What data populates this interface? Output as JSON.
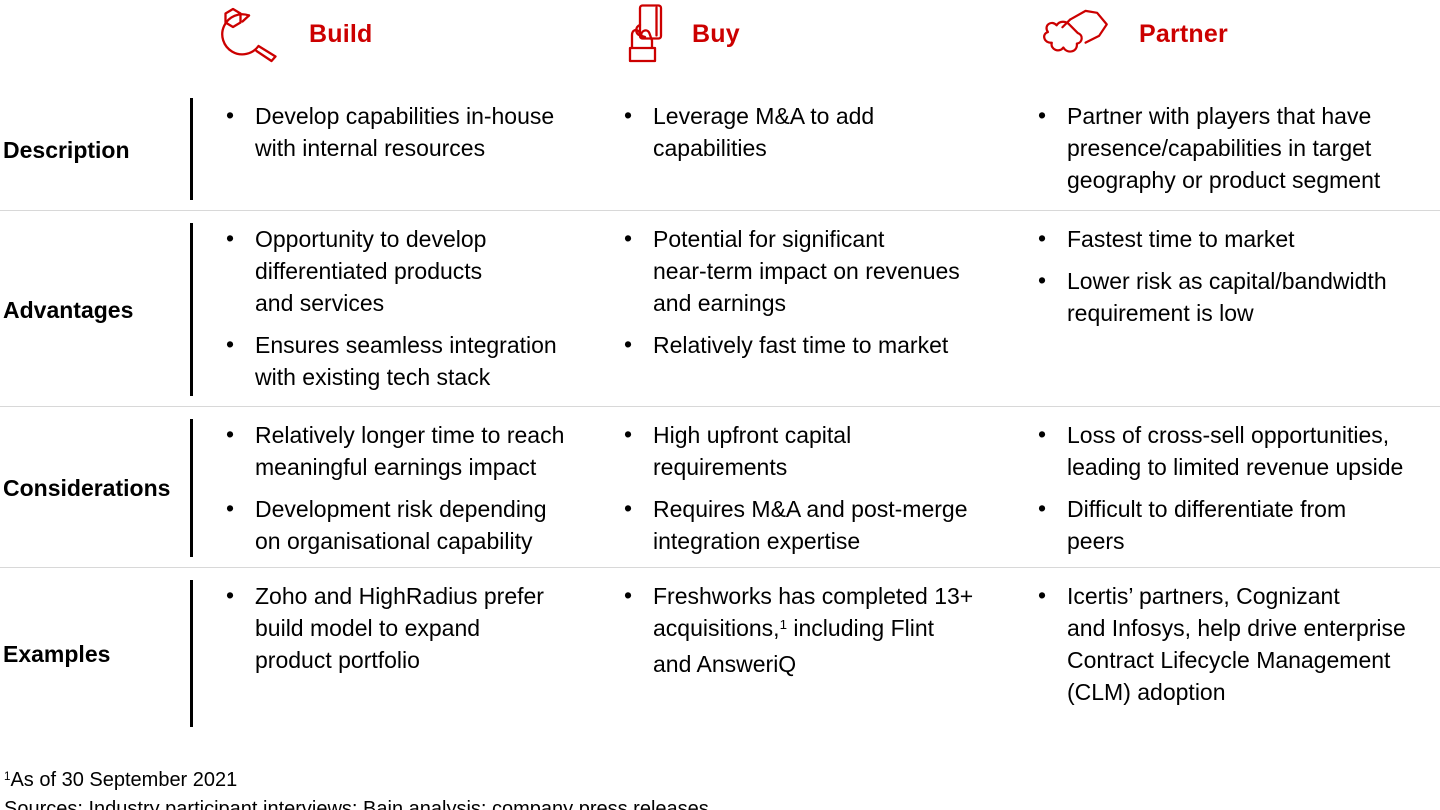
{
  "colors": {
    "accent": "#CC0000",
    "divider": "#D8D8D8",
    "bar": "#000000",
    "text": "#000000"
  },
  "columns": [
    {
      "label": "Build",
      "icon": "wrench-icon"
    },
    {
      "label": "Buy",
      "icon": "hand-card-icon"
    },
    {
      "label": "Partner",
      "icon": "handshake-icon"
    }
  ],
  "rows": [
    {
      "label": "Description",
      "cells": [
        [
          "Develop capabilities in-house\nwith internal resources"
        ],
        [
          "Leverage M&A to add\ncapabilities"
        ],
        [
          "Partner with players that have\npresence/capabilities in target\ngeography or product segment"
        ]
      ]
    },
    {
      "label": "Advantages",
      "cells": [
        [
          "Opportunity to develop\ndifferentiated products\nand services",
          "Ensures seamless integration\nwith existing tech stack"
        ],
        [
          "Potential for significant\nnear-term impact on revenues\nand earnings",
          "Relatively fast time to market"
        ],
        [
          "Fastest time to market",
          "Lower risk as capital/bandwidth\nrequirement is low"
        ]
      ]
    },
    {
      "label": "Considerations",
      "cells": [
        [
          "Relatively longer time to reach\nmeaningful earnings impact",
          "Development risk depending\non organisational capability"
        ],
        [
          "High upfront capital\nrequirements",
          "Requires M&A and post-merge\nintegration expertise"
        ],
        [
          "Loss of cross-sell opportunities,\nleading to limited revenue upside",
          "Difficult to differentiate from\npeers"
        ]
      ]
    },
    {
      "label": "Examples",
      "cells": [
        [
          "Zoho and HighRadius prefer\nbuild model to expand\nproduct portfolio"
        ],
        [
          "Freshworks has completed 13+\nacquisitions,^1 including Flint\nand AnsweriQ"
        ],
        [
          "Icertis’ partners, Cognizant\nand Infosys, help drive enterprise\nContract Lifecycle Management\n(CLM) adoption"
        ]
      ]
    }
  ],
  "footnotes": [
    "^1As of 30 September 2021",
    "Sources: Industry participant interviews; Bain analysis; company press releases"
  ]
}
